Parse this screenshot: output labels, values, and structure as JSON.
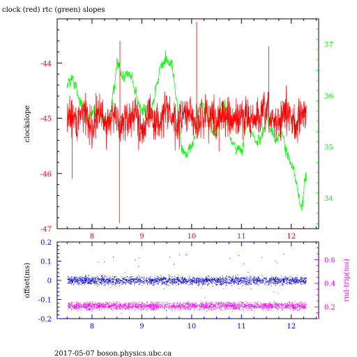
{
  "title": "clock (red) rtc (green) slopes",
  "footer": "2017-05-07  boson.physics.ubc.ca",
  "colors": {
    "clock": "#ff0000",
    "rtc": "#00ff00",
    "offset": "#0000ff",
    "rndtrip": "#ff00ff",
    "axis": "#000000"
  },
  "chart_data": [
    {
      "type": "line",
      "title": "clock (red) rtc (green) slopes",
      "xlabel": "",
      "ylabel": "clockslope",
      "y2label": "",
      "xlim": [
        7.3,
        12.55
      ],
      "ylim": [
        -47,
        -43.2
      ],
      "y2lim": [
        33.4,
        37.5
      ],
      "xticks": [
        "8",
        "9",
        "10",
        "11",
        "12"
      ],
      "yticks": [
        "-44",
        "-45",
        "-46",
        "-47"
      ],
      "y2ticks": [
        "37",
        "36",
        "35",
        "34"
      ],
      "series": [
        {
          "name": "clock",
          "axis": "left",
          "x": [
            7.5,
            7.6,
            7.7,
            7.8,
            7.9,
            8.0,
            8.1,
            8.2,
            8.3,
            8.4,
            8.5,
            8.55,
            8.6,
            8.7,
            8.8,
            8.9,
            9.0,
            9.1,
            9.2,
            9.3,
            9.4,
            9.5,
            9.6,
            9.7,
            9.8,
            9.9,
            10.0,
            10.1,
            10.2,
            10.3,
            10.4,
            10.5,
            10.6,
            10.7,
            10.8,
            10.9,
            11.0,
            11.1,
            11.2,
            11.3,
            11.4,
            11.5,
            11.6,
            11.7,
            11.8,
            11.9,
            12.0,
            12.1,
            12.2,
            12.3
          ],
          "y": [
            -45.0,
            -44.9,
            -45.1,
            -44.8,
            -45.0,
            -45.2,
            -44.9,
            -45.0,
            -45.1,
            -44.9,
            -45.0,
            -45.3,
            -45.0,
            -45.1,
            -44.9,
            -45.0,
            -45.2,
            -44.9,
            -45.0,
            -45.1,
            -45.0,
            -44.8,
            -45.0,
            -45.2,
            -45.0,
            -44.9,
            -45.0,
            -45.1,
            -45.0,
            -44.9,
            -45.0,
            -45.0,
            -44.9,
            -45.0,
            -45.1,
            -45.0,
            -45.0,
            -44.9,
            -45.1,
            -45.0,
            -45.0,
            -44.9,
            -45.0,
            -45.1,
            -45.0,
            -44.9,
            -45.0,
            -45.1,
            -45.0,
            -44.9
          ],
          "noise": 0.35
        },
        {
          "name": "rtc",
          "axis": "right",
          "x": [
            7.5,
            7.6,
            7.7,
            7.8,
            7.9,
            8.0,
            8.1,
            8.2,
            8.3,
            8.4,
            8.5,
            8.6,
            8.7,
            8.8,
            8.9,
            9.0,
            9.1,
            9.2,
            9.3,
            9.4,
            9.5,
            9.6,
            9.7,
            9.8,
            9.9,
            10.0,
            10.1,
            10.2,
            10.3,
            10.4,
            10.5,
            10.6,
            10.7,
            10.8,
            10.9,
            11.0,
            11.1,
            11.2,
            11.3,
            11.4,
            11.5,
            11.6,
            11.7,
            11.8,
            11.9,
            12.0,
            12.1,
            12.2,
            12.3
          ],
          "y": [
            36.2,
            36.4,
            36.1,
            35.8,
            35.6,
            35.5,
            35.7,
            35.6,
            35.5,
            35.8,
            36.5,
            36.4,
            36.5,
            36.3,
            36.0,
            35.7,
            35.5,
            35.8,
            36.3,
            36.6,
            36.7,
            36.6,
            35.8,
            35.0,
            34.8,
            35.1,
            35.4,
            35.8,
            35.7,
            35.3,
            35.2,
            35.8,
            35.7,
            35.2,
            35.0,
            34.9,
            35.5,
            35.3,
            35.1,
            35.2,
            35.5,
            35.4,
            35.1,
            35.3,
            34.9,
            34.6,
            34.3,
            33.8,
            34.4
          ],
          "noise": 0.18
        }
      ]
    },
    {
      "type": "scatter",
      "xlabel": "",
      "ylabel": "offset(ms)",
      "y2label": "rnd-trip(ms)",
      "xlim": [
        7.3,
        12.55
      ],
      "ylim": [
        -0.2,
        0.2
      ],
      "y2lim": [
        0.1,
        0.75
      ],
      "xticks": [
        "8",
        "9",
        "10",
        "11",
        "12"
      ],
      "yticks": [
        "0.2",
        "0.1",
        "0",
        "-0.1",
        "-0.2"
      ],
      "y2ticks": [
        "0.6",
        "0.4",
        "0.2"
      ],
      "series": [
        {
          "name": "offset",
          "axis": "left",
          "x_range": [
            7.5,
            12.3
          ],
          "center": 0.0,
          "spread": 0.035,
          "count": 2200
        },
        {
          "name": "rnd-trip",
          "axis": "right",
          "x_range": [
            7.5,
            12.3
          ],
          "center": 0.21,
          "spread": 0.05,
          "count": 2200
        }
      ]
    }
  ]
}
